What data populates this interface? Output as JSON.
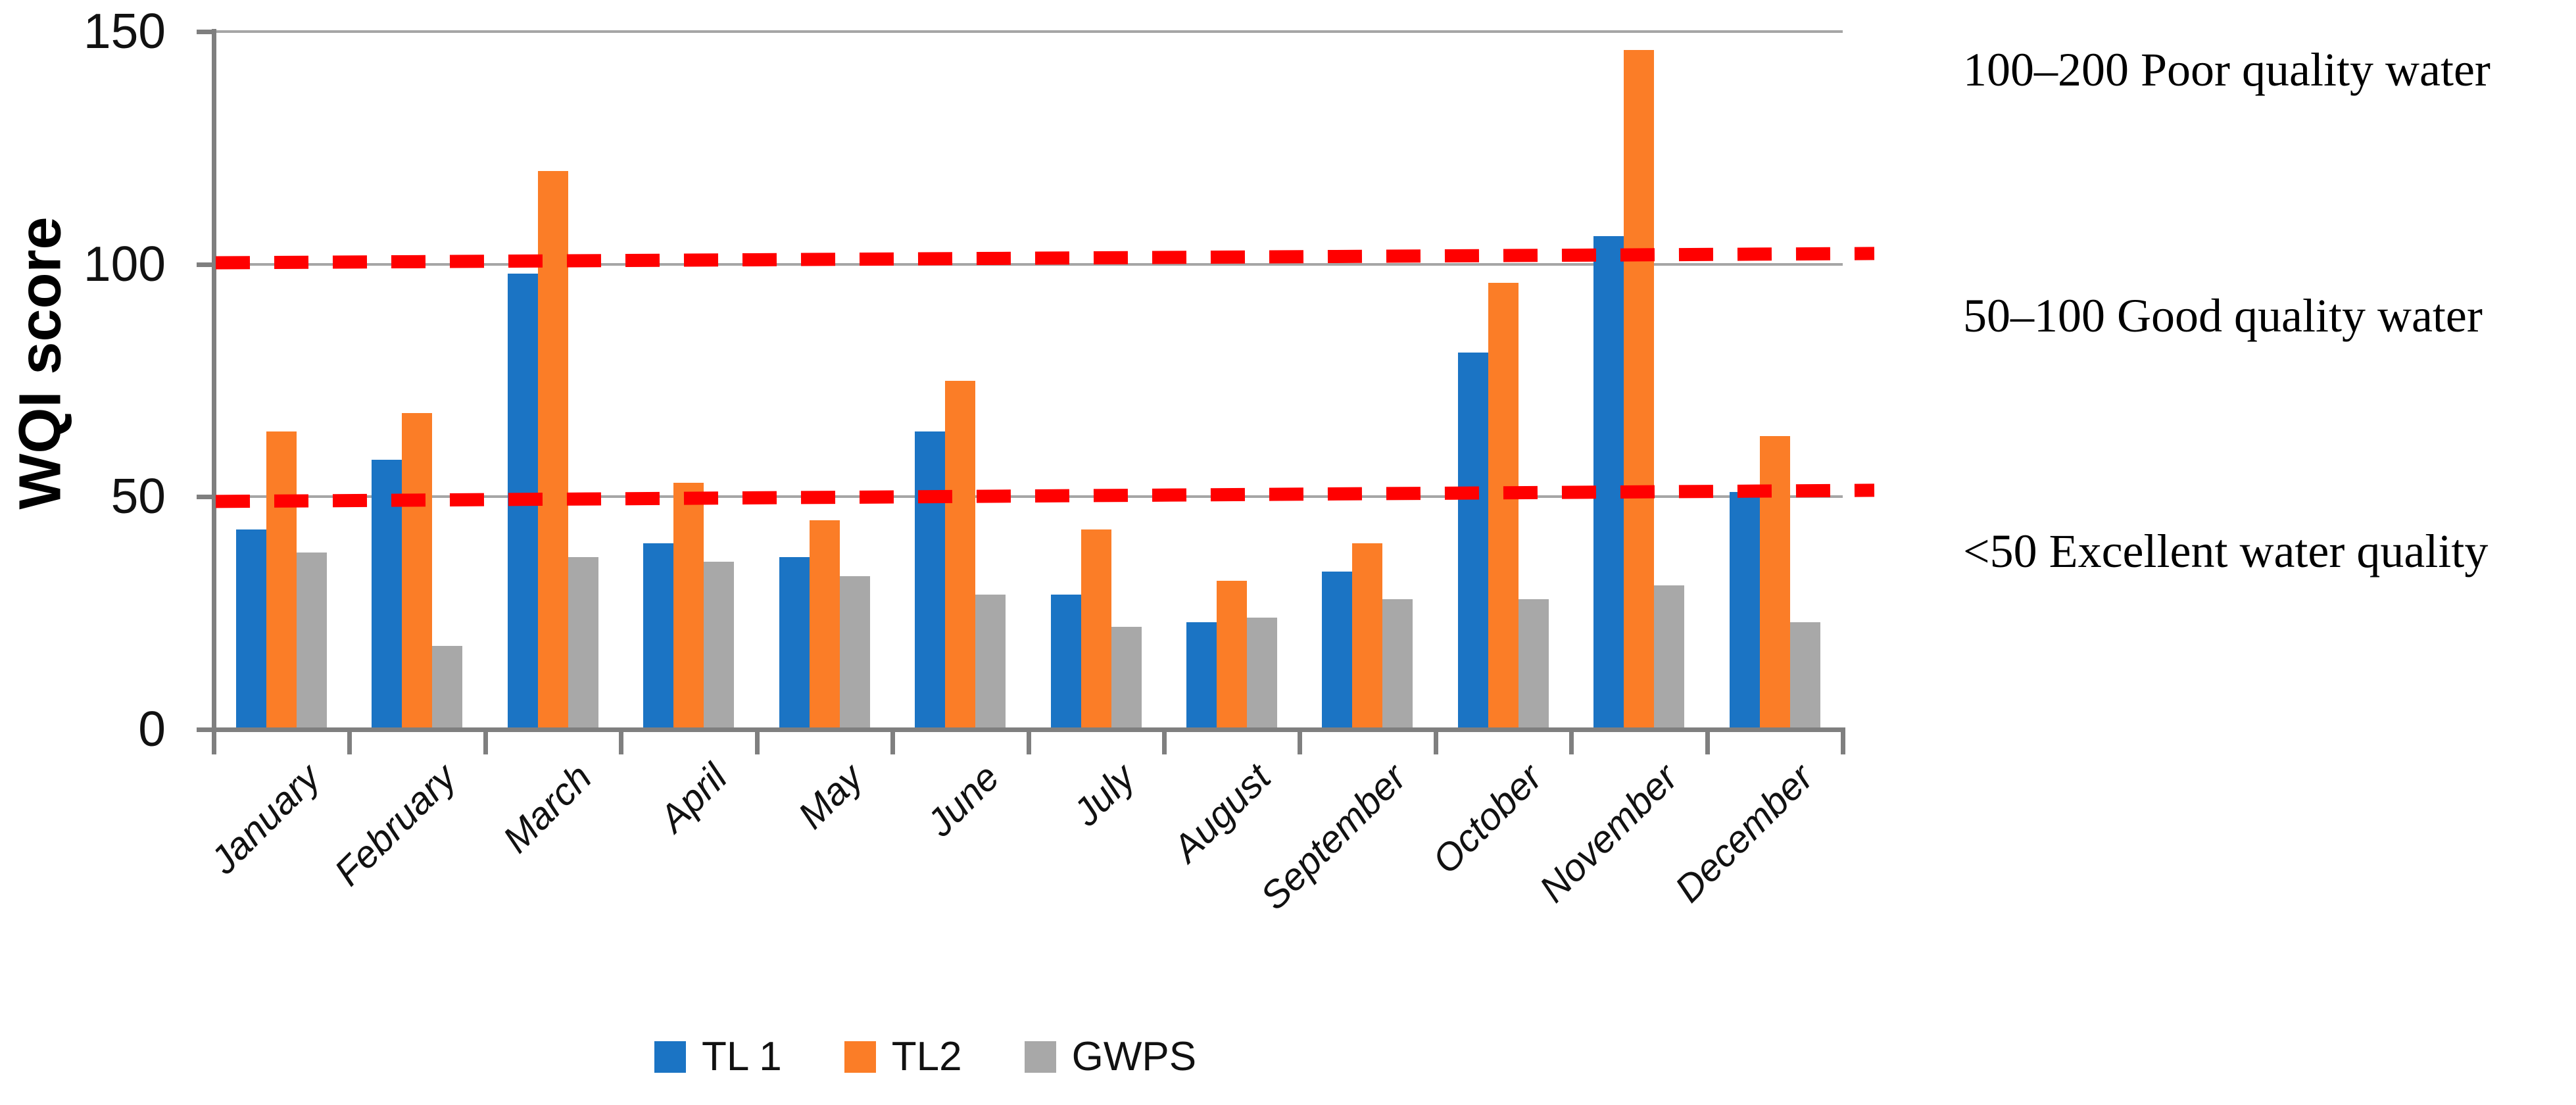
{
  "chart_data": {
    "type": "bar",
    "title": "",
    "xlabel": "",
    "ylabel": "WQI score",
    "categories": [
      "January",
      "February",
      "March",
      "April",
      "May",
      "June",
      "July",
      "August",
      "September",
      "October",
      "November",
      "December"
    ],
    "series": [
      {
        "name": "TL 1",
        "color": "#1B74C4",
        "values": [
          43,
          58,
          98,
          40,
          37,
          64,
          29,
          23,
          34,
          81,
          106,
          51
        ]
      },
      {
        "name": "TL2",
        "color": "#FB7D27",
        "values": [
          64,
          68,
          120,
          53,
          45,
          75,
          43,
          32,
          40,
          96,
          146,
          63
        ]
      },
      {
        "name": "GWPS",
        "color": "#A8A8A8",
        "values": [
          38,
          18,
          37,
          36,
          33,
          29,
          22,
          24,
          28,
          28,
          31,
          23
        ]
      }
    ],
    "ylim": [
      0,
      150
    ],
    "yticks": [
      0,
      50,
      100,
      150
    ],
    "grid": "horizontal",
    "legend_position": "bottom",
    "reference_lines": [
      {
        "name": "upper-threshold",
        "style": "dashed",
        "color": "#FF0000",
        "value_start": 100.3,
        "value_end": 102.3
      },
      {
        "name": "lower-threshold",
        "style": "dashed",
        "color": "#FF0000",
        "value_start": 49.0,
        "value_end": 51.4
      }
    ],
    "annotations": [
      "100–200 Poor quality water",
      "50–100 Good quality water",
      "<50 Excellent water quality"
    ]
  }
}
